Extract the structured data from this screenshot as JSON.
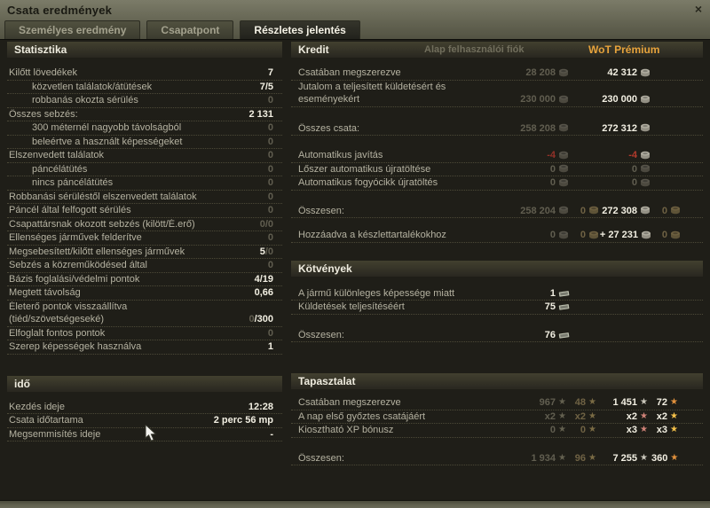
{
  "window": {
    "title": "Csata eredmények",
    "close_label": "×"
  },
  "tabs": [
    {
      "label": "Személyes eredmény",
      "active": false
    },
    {
      "label": "Csapatpont",
      "active": false
    },
    {
      "label": "Részletes jelentés",
      "active": true
    }
  ],
  "colors": {
    "text": {
      "bright": "#f2efe2",
      "dim": "#615e50",
      "red": "#b23a2c",
      "reddim": "#933128",
      "golddim": "#6f6244",
      "label": "#b5b2a1"
    },
    "icons": {
      "credits_dim": "#57544a",
      "credits_bright": "#b0ada0",
      "gold_dim": "#6e6040",
      "gold_bright": "#c9a23e",
      "bond": "#b9bcab",
      "star_dimsilver": "#63604f",
      "star_dimgold": "#7a6b44",
      "star_silver": "#c9c6ba",
      "star_gold": "#f6c24a",
      "star_orange": "#e2913c",
      "star_redsilver": "#cf8277"
    },
    "premium_header": "#e7a33c"
  },
  "stats": {
    "header": "Statisztika",
    "rows": [
      {
        "label": "Kilőtt lövedékek",
        "indent": 0,
        "parts": [
          {
            "t": "7",
            "tone": "bright"
          }
        ]
      },
      {
        "label": "közvetlen találatok/átütések",
        "indent": 1,
        "parts": [
          {
            "t": "7/5",
            "tone": "bright"
          }
        ]
      },
      {
        "label": "robbanás okozta sérülés",
        "indent": 1,
        "parts": [
          {
            "t": "0",
            "tone": "dim"
          }
        ]
      },
      {
        "label": "Összes sebzés:",
        "indent": 0,
        "parts": [
          {
            "t": "2 131",
            "tone": "bright"
          }
        ]
      },
      {
        "label": "300 méternél nagyobb távolságból",
        "indent": 1,
        "parts": [
          {
            "t": "0",
            "tone": "dim"
          }
        ]
      },
      {
        "label": "beleértve a használt képességeket",
        "indent": 1,
        "parts": [
          {
            "t": "0",
            "tone": "dim"
          }
        ]
      },
      {
        "label": "Elszenvedett találatok",
        "indent": 0,
        "parts": [
          {
            "t": "0",
            "tone": "dim"
          }
        ]
      },
      {
        "label": "páncélátütés",
        "indent": 1,
        "parts": [
          {
            "t": "0",
            "tone": "dim"
          }
        ]
      },
      {
        "label": "nincs páncélátütés",
        "indent": 1,
        "parts": [
          {
            "t": "0",
            "tone": "dim"
          }
        ]
      },
      {
        "label": "Robbanási sérüléstől elszenvedett találatok",
        "indent": 0,
        "parts": [
          {
            "t": "0",
            "tone": "dim"
          }
        ]
      },
      {
        "label": "Páncél által felfogott sérülés",
        "indent": 0,
        "parts": [
          {
            "t": "0",
            "tone": "dim"
          }
        ]
      },
      {
        "label": "Csapattársnak okozott sebzés (kilött/É.erő)",
        "indent": 0,
        "parts": [
          {
            "t": "0/0",
            "tone": "dim"
          }
        ]
      },
      {
        "label": "Ellenséges járművek felderítve",
        "indent": 0,
        "parts": [
          {
            "t": "0",
            "tone": "dim"
          }
        ]
      },
      {
        "label": "Megsebesített/kilőtt ellenséges járművek",
        "indent": 0,
        "parts": [
          {
            "t": "5",
            "tone": "bright"
          },
          {
            "t": "/0",
            "tone": "dim"
          }
        ]
      },
      {
        "label": "Sebzés a közreműködésed által",
        "indent": 0,
        "parts": [
          {
            "t": "0",
            "tone": "dim"
          }
        ]
      },
      {
        "label": "Bázis foglalási/védelmi pontok",
        "indent": 0,
        "parts": [
          {
            "t": "4/19",
            "tone": "bright"
          }
        ]
      },
      {
        "label": "Megtett távolság",
        "indent": 0,
        "parts": [
          {
            "t": "0,66",
            "tone": "bright"
          }
        ]
      },
      {
        "label": "Életerő pontok visszaállítva",
        "indent": 0,
        "noborder": true,
        "parts": []
      },
      {
        "label": "(tiéd/szövetségeseké)",
        "indent": 0,
        "parts": [
          {
            "t": "0",
            "tone": "dim"
          },
          {
            "t": "/300",
            "tone": "bright"
          }
        ]
      },
      {
        "label": "Elfoglalt fontos pontok",
        "indent": 0,
        "parts": [
          {
            "t": "0",
            "tone": "dim"
          }
        ]
      },
      {
        "label": "Szerep képességek használva",
        "indent": 0,
        "parts": [
          {
            "t": "1",
            "tone": "bright"
          }
        ]
      }
    ]
  },
  "time": {
    "header": "idő",
    "rows": [
      {
        "label": "Kezdés ideje",
        "indent": 0,
        "parts": [
          {
            "t": "12:28",
            "tone": "bright"
          }
        ]
      },
      {
        "label": "Csata időtartama",
        "indent": 0,
        "parts": [
          {
            "t": "2 perc 56 mp",
            "tone": "bright"
          }
        ]
      },
      {
        "label": "Megsemmisítés ideje",
        "indent": 0,
        "parts": [
          {
            "t": "-",
            "tone": "bright"
          }
        ]
      }
    ]
  },
  "credit": {
    "header": "Kredit",
    "col_base": "Alap felhasználói fiók",
    "col_premium": "WoT Prémium",
    "rows": [
      {
        "label": "Csatában megszerezve",
        "c1": {
          "t": "28 208",
          "tone": "dim",
          "icon": "credits",
          "itone": "credits_dim"
        },
        "c3": {
          "t": "42 312",
          "tone": "bright",
          "icon": "credits",
          "itone": "credits_bright"
        }
      },
      {
        "pre_label": "Jutalom a teljesített küldetésért és",
        "label": "eseményekért",
        "c1": {
          "t": "230 000",
          "tone": "dim",
          "icon": "credits",
          "itone": "credits_dim"
        },
        "c3": {
          "t": "230 000",
          "tone": "bright",
          "icon": "credits",
          "itone": "credits_bright"
        }
      },
      {
        "spacer": 17,
        "label": "Összes csata:",
        "c1": {
          "t": "258 208",
          "tone": "dim",
          "icon": "credits",
          "itone": "credits_dim"
        },
        "c3": {
          "t": "272 312",
          "tone": "bright",
          "icon": "credits",
          "itone": "credits_bright"
        }
      },
      {
        "spacer": 15,
        "label": "Automatikus javítás",
        "c1": {
          "t": "-4",
          "tone": "reddim",
          "icon": "credits",
          "itone": "credits_dim"
        },
        "c3": {
          "t": "-4",
          "tone": "red",
          "icon": "credits",
          "itone": "credits_bright"
        }
      },
      {
        "label": "Lőszer automatikus újratöltése",
        "c1": {
          "t": "0",
          "tone": "dim",
          "icon": "credits",
          "itone": "credits_dim"
        },
        "c3": {
          "t": "0",
          "tone": "dim",
          "icon": "credits",
          "itone": "credits_dim"
        }
      },
      {
        "label": "Automatikus fogyócikk újratöltés",
        "c1": {
          "t": "0",
          "tone": "dim",
          "icon": "credits",
          "itone": "credits_dim"
        },
        "c3": {
          "t": "0",
          "tone": "dim",
          "icon": "credits",
          "itone": "credits_dim"
        }
      },
      {
        "spacer": 16,
        "label": "Összesen:",
        "c1": {
          "t": "258 204",
          "tone": "dim",
          "icon": "credits",
          "itone": "credits_dim"
        },
        "c2": {
          "t": "0",
          "tone": "golddim",
          "icon": "gold",
          "itone": "gold_dim"
        },
        "c3": {
          "t": "272 308",
          "tone": "bright",
          "icon": "credits",
          "itone": "credits_bright"
        },
        "c4": {
          "t": "0",
          "tone": "golddim",
          "icon": "gold",
          "itone": "gold_dim"
        }
      },
      {
        "spacer": 12,
        "label": "Hozzáadva a készlettartalékokhoz",
        "c1": {
          "t": "0",
          "tone": "dim",
          "icon": "credits",
          "itone": "credits_dim"
        },
        "c2": {
          "t": "0",
          "tone": "golddim",
          "icon": "gold",
          "itone": "gold_dim"
        },
        "c3": {
          "t": "+ 27 231",
          "tone": "bright",
          "icon": "credits",
          "itone": "credits_bright"
        },
        "c4": {
          "t": "0",
          "tone": "golddim",
          "icon": "gold",
          "itone": "gold_dim"
        }
      }
    ]
  },
  "bonds": {
    "header": "Kötvények",
    "rows": [
      {
        "label": "A jármű különleges képessége miatt",
        "c1": {
          "t": "1",
          "tone": "bright",
          "icon": "bond",
          "itone": "bond"
        }
      },
      {
        "label": "Küldetések teljesítéséért",
        "c1": {
          "t": "75",
          "tone": "bright",
          "icon": "bond",
          "itone": "bond"
        }
      },
      {
        "spacer": 16,
        "label": "Összesen:",
        "c1": {
          "t": "76",
          "tone": "bright",
          "icon": "bond",
          "itone": "bond"
        }
      }
    ]
  },
  "xp": {
    "header": "Tapasztalat",
    "rows": [
      {
        "label": "Csatában megszerezve",
        "c1": {
          "t": "967",
          "tone": "dim",
          "icon": "star",
          "itone": "star_dimsilver"
        },
        "c2": {
          "t": "48",
          "tone": "golddim",
          "icon": "star",
          "itone": "star_dimgold"
        },
        "c3": {
          "t": "1 451",
          "tone": "bright",
          "icon": "star",
          "itone": "star_silver"
        },
        "c4": {
          "t": "72",
          "tone": "bright",
          "icon": "star",
          "itone": "star_orange"
        }
      },
      {
        "label": "A nap első győztes csatájáért",
        "c1": {
          "t": "x2",
          "tone": "dim",
          "icon": "star",
          "itone": "star_dimsilver"
        },
        "c2": {
          "t": "x2",
          "tone": "golddim",
          "icon": "star",
          "itone": "star_dimgold"
        },
        "c3": {
          "t": "x2",
          "tone": "bright",
          "icon": "star",
          "itone": "star_redsilver"
        },
        "c4": {
          "t": "x2",
          "tone": "bright",
          "icon": "star",
          "itone": "star_gold"
        }
      },
      {
        "label": "Kiosztható XP bónusz",
        "c1": {
          "t": "0",
          "tone": "dim",
          "icon": "star",
          "itone": "star_dimsilver"
        },
        "c2": {
          "t": "0",
          "tone": "golddim",
          "icon": "star",
          "itone": "star_dimgold"
        },
        "c3": {
          "t": "x3",
          "tone": "bright",
          "icon": "star",
          "itone": "star_redsilver"
        },
        "c4": {
          "t": "x3",
          "tone": "bright",
          "icon": "star",
          "itone": "star_gold"
        }
      },
      {
        "spacer": 16,
        "label": "Összesen:",
        "c1": {
          "t": "1 934",
          "tone": "dim",
          "icon": "star",
          "itone": "star_dimsilver"
        },
        "c2": {
          "t": "96",
          "tone": "golddim",
          "icon": "star",
          "itone": "star_dimgold"
        },
        "c3": {
          "t": "7 255",
          "tone": "bright",
          "icon": "star",
          "itone": "star_silver"
        },
        "c4": {
          "t": "360",
          "tone": "bright",
          "icon": "star",
          "itone": "star_orange"
        }
      }
    ]
  }
}
